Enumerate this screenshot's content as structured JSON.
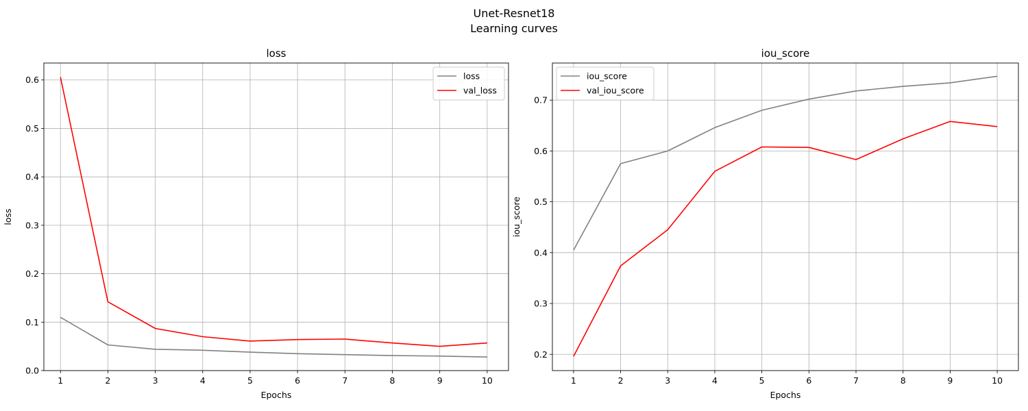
{
  "figure": {
    "suptitle_line1": "Unet-Resnet18",
    "suptitle_line2": "Learning curves"
  },
  "colors": {
    "train": "#808080",
    "val": "#ff0000",
    "grid": "#b0b0b0"
  },
  "chart_data": [
    {
      "type": "line",
      "title": "loss",
      "xlabel": "Epochs",
      "ylabel": "loss",
      "x": [
        1,
        2,
        3,
        4,
        5,
        6,
        7,
        8,
        9,
        10
      ],
      "xlim": [
        0.65,
        10.45
      ],
      "ylim": [
        0,
        0.635
      ],
      "yticks": [
        0.0,
        0.1,
        0.2,
        0.3,
        0.4,
        0.5,
        0.6
      ],
      "ytick_labels": [
        "0.0",
        "0.1",
        "0.2",
        "0.3",
        "0.4",
        "0.5",
        "0.6"
      ],
      "grid": true,
      "legend": "upper right",
      "series": [
        {
          "name": "loss",
          "color": "#808080",
          "values": [
            0.11,
            0.053,
            0.044,
            0.042,
            0.038,
            0.035,
            0.033,
            0.031,
            0.03,
            0.028
          ]
        },
        {
          "name": "val_loss",
          "color": "#ff0000",
          "values": [
            0.606,
            0.142,
            0.087,
            0.07,
            0.061,
            0.064,
            0.065,
            0.057,
            0.05,
            0.057
          ]
        }
      ]
    },
    {
      "type": "line",
      "title": "iou_score",
      "xlabel": "Epochs",
      "ylabel": "iou_score",
      "x": [
        1,
        2,
        3,
        4,
        5,
        6,
        7,
        8,
        9,
        10
      ],
      "xlim": [
        0.55,
        10.45
      ],
      "ylim": [
        0.168,
        0.773
      ],
      "yticks": [
        0.2,
        0.3,
        0.4,
        0.5,
        0.6,
        0.7
      ],
      "ytick_labels": [
        "0.2",
        "0.3",
        "0.4",
        "0.5",
        "0.6",
        "0.7"
      ],
      "grid": true,
      "legend": "upper left",
      "series": [
        {
          "name": "iou_score",
          "color": "#808080",
          "values": [
            0.405,
            0.575,
            0.6,
            0.646,
            0.68,
            0.702,
            0.718,
            0.727,
            0.734,
            0.747
          ]
        },
        {
          "name": "val_iou_score",
          "color": "#ff0000",
          "values": [
            0.196,
            0.374,
            0.445,
            0.56,
            0.608,
            0.607,
            0.583,
            0.624,
            0.658,
            0.648
          ]
        }
      ]
    }
  ]
}
